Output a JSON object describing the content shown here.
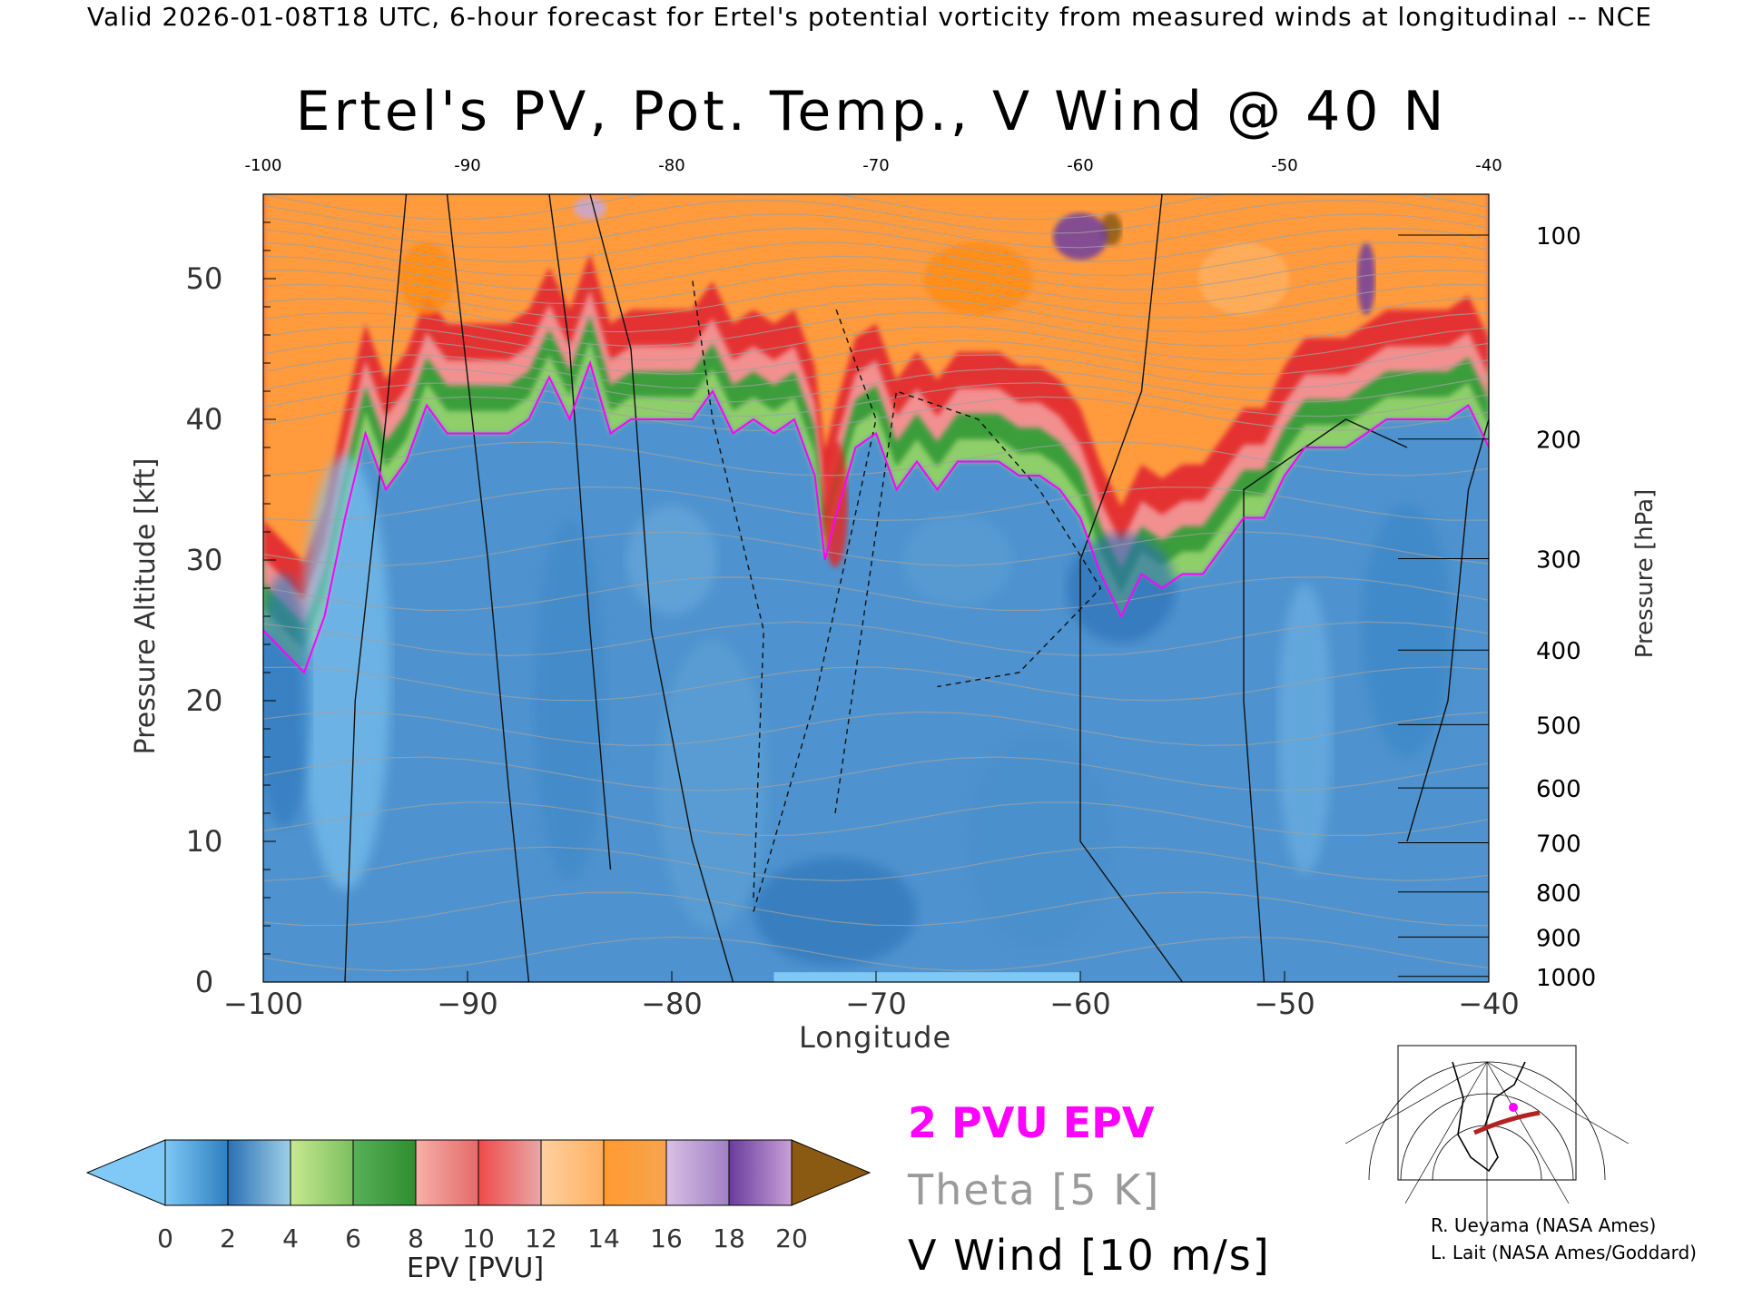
{
  "header": "Valid 2026-01-08T18 UTC, 6-hour forecast for Ertel's potential vorticity from measured winds at longitudinal -- NCE",
  "chart_data": {
    "type": "heatmap",
    "title": "Ertel's PV, Pot. Temp., V Wind @ 40 N",
    "xlabel": "Longitude",
    "ylabel_left": "Pressure Altitude [kft]",
    "ylabel_right": "Pressure [hPa]",
    "xlim": [
      -100,
      -40
    ],
    "ylim": [
      0,
      56
    ],
    "x_ticks": [
      -100,
      -90,
      -80,
      -70,
      -60,
      -50,
      -40
    ],
    "x_tick_labels": [
      "−100",
      "−90",
      "−80",
      "−70",
      "−60",
      "−50",
      "−40"
    ],
    "top_tick_labels": [
      "-100",
      "-90",
      "-80",
      "-70",
      "-60",
      "-50",
      "-40"
    ],
    "y_ticks": [
      0,
      10,
      20,
      30,
      40,
      50
    ],
    "pressure_ticks": [
      {
        "label": "100",
        "kft": 53.1
      },
      {
        "label": "200",
        "kft": 38.6
      },
      {
        "label": "300",
        "kft": 30.1
      },
      {
        "label": "400",
        "kft": 23.6
      },
      {
        "label": "500",
        "kft": 18.3
      },
      {
        "label": "600",
        "kft": 13.8
      },
      {
        "label": "700",
        "kft": 9.9
      },
      {
        "label": "800",
        "kft": 6.4
      },
      {
        "label": "900",
        "kft": 3.2
      },
      {
        "label": "1000",
        "kft": 0.4
      }
    ],
    "tropopause_2pvu": {
      "lon": [
        -100,
        -98,
        -97,
        -96,
        -95,
        -94,
        -93,
        -92,
        -91,
        -90,
        -89,
        -88,
        -87,
        -86,
        -85,
        -84,
        -83,
        -82,
        -81,
        -80,
        -79,
        -78,
        -77,
        -76,
        -75,
        -74,
        -73,
        -72.5,
        -72,
        -71,
        -70,
        -69,
        -68,
        -67,
        -66,
        -65,
        -64,
        -63,
        -62,
        -61,
        -60,
        -59,
        -58,
        -57,
        -56,
        -55,
        -54,
        -53,
        -52,
        -51,
        -50,
        -49,
        -48,
        -47,
        -46,
        -45,
        -44,
        -43,
        -42,
        -41,
        -40
      ],
      "kft": [
        25,
        22,
        26,
        33,
        39,
        35,
        37,
        41,
        39,
        39,
        39,
        39,
        40,
        43,
        40,
        44,
        39,
        40,
        40,
        40,
        40,
        42,
        39,
        40,
        39,
        40,
        36,
        30,
        33,
        38,
        39,
        35,
        37,
        35,
        37,
        37,
        37,
        36,
        36,
        35,
        33,
        29,
        26,
        29,
        28,
        29,
        29,
        31,
        33,
        33,
        36,
        38,
        38,
        38,
        39,
        40,
        40,
        40,
        40,
        41,
        38
      ]
    },
    "epv_colorbar": {
      "label": "EPV [PVU]",
      "ticks": [
        "0",
        "2",
        "4",
        "6",
        "8",
        "10",
        "12",
        "14",
        "16",
        "18",
        "20"
      ],
      "colors": [
        "#6fb8e6",
        "#2f7fc0",
        "#a9d36c",
        "#3a9e3a",
        "#f18a8a",
        "#e22a2a",
        "#ffb060",
        "#ff8c14",
        "#c6a8d6",
        "#7040a0",
        "#f7ef8a",
        "#8b5a12"
      ],
      "under_color": "#80c8f5",
      "over_color": "#8b5a12"
    },
    "legend": {
      "pv": "2 PVU EPV",
      "theta": "Theta [5 K]",
      "wind": "V Wind [10 m/s]",
      "colors": {
        "pv": "#ff00ff",
        "theta": "#9a9a9a",
        "wind": "#000000"
      }
    }
  },
  "credits": {
    "line1": "R. Ueyama (NASA Ames)",
    "line2": "L. Lait (NASA Ames/Goddard)"
  },
  "inset_map": {
    "icon": "globe-map-inset"
  }
}
